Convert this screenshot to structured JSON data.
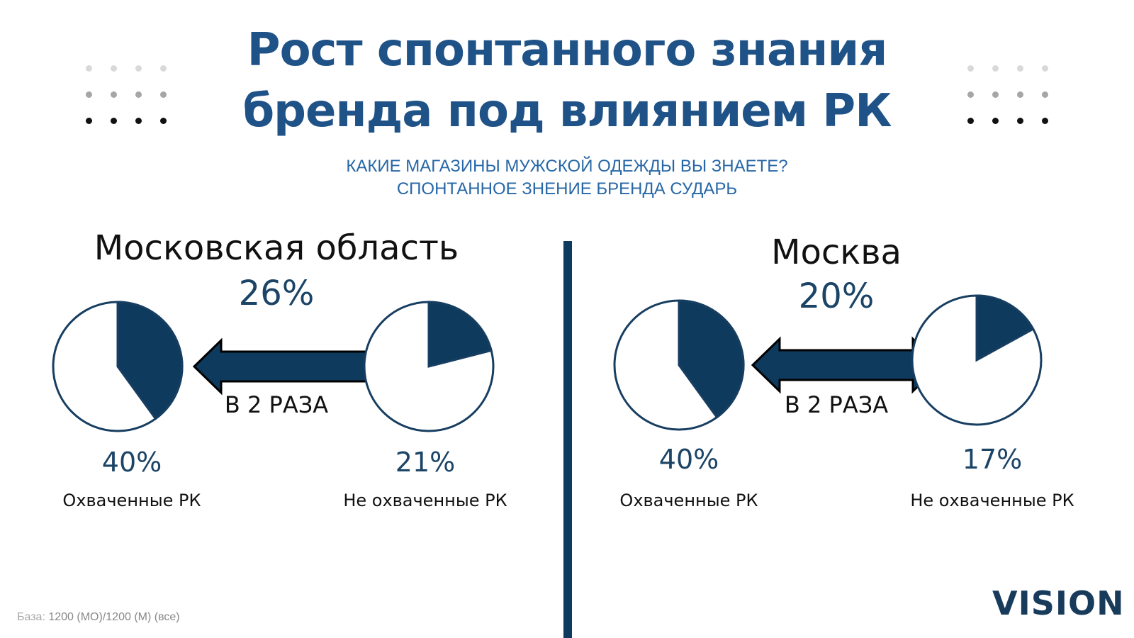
{
  "header": {
    "title_line1": "Рост спонтанного знания",
    "title_line2": "бренда под влиянием РК",
    "question": "КАКИЕ МАГАЗИНЫ МУЖСКОЙ ОДЕЖДЫ ВЫ ЗНАЕТЕ?",
    "metric": "СПОНТАННОЕ ЗНЕНИЕ БРЕНДА СУДАРЬ"
  },
  "colors": {
    "title": "#1f5287",
    "subtitle": "#2767a6",
    "pie_fill": "#0e3a5d",
    "pie_outline": "#173e61",
    "arrow": "#173e61",
    "divider": "#0e3a5d"
  },
  "footer": {
    "base_label": "База:",
    "base_value": "1200 (МО)/1200 (М) (все)",
    "logo": "VISION"
  },
  "chart_data": [
    {
      "type": "pie",
      "region": "Московская область",
      "headline": "26%",
      "ratio_label": "В 2 РАЗА",
      "pies": [
        {
          "category": "Охваченные РК",
          "label": "40%",
          "value": 40
        },
        {
          "category": "Не охваченные РК",
          "label": "21%",
          "value": 21
        }
      ]
    },
    {
      "type": "pie",
      "region": "Москва",
      "headline": "20%",
      "ratio_label": "В 2 РАЗА",
      "pies": [
        {
          "category": "Охваченные РК",
          "label": "40%",
          "value": 40
        },
        {
          "category": "Не охваченные РК",
          "label": "17%",
          "value": 17
        }
      ]
    }
  ]
}
